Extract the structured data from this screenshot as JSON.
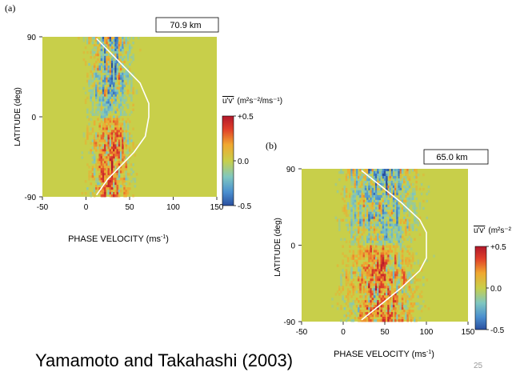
{
  "chart_data": [
    {
      "type": "heatmap",
      "panel_label": "(a)",
      "title": "70.9 km",
      "xlabel": "PHASE VELOCITY (ms",
      "xlabel_sup": "-1",
      "xlabel_close": ")",
      "ylabel": "LATITUDE (deg)",
      "x_ticks": [
        "-50",
        "0",
        "50",
        "100",
        "150"
      ],
      "x_tick_values": [
        -50,
        0,
        50,
        100,
        150
      ],
      "y_ticks": [
        "90",
        "0",
        "-90"
      ],
      "y_tick_values": [
        90,
        0,
        -90
      ],
      "xlim": [
        -50,
        150
      ],
      "ylim": [
        -90,
        90
      ],
      "colorbar_ticks": [
        "+0.5",
        "0.0",
        "-0.5"
      ],
      "colorbar_range": [
        -0.5,
        0.5
      ],
      "quantity": "u'v'",
      "units": "(m²s⁻²/ms⁻¹)",
      "envelope_line": [
        [
          12,
          88
        ],
        [
          30,
          70
        ],
        [
          45,
          55
        ],
        [
          62,
          38
        ],
        [
          72,
          15
        ],
        [
          72,
          0
        ],
        [
          68,
          -22
        ],
        [
          55,
          -40
        ],
        [
          40,
          -55
        ],
        [
          25,
          -70
        ],
        [
          12,
          -88
        ]
      ],
      "signal_center": [
        25,
        30
      ],
      "signal_halfwidth": [
        28,
        26
      ]
    },
    {
      "type": "heatmap",
      "panel_label": "(b)",
      "title": "65.0 km",
      "xlabel": "PHASE VELOCITY (ms",
      "xlabel_sup": "-1",
      "xlabel_close": ")",
      "ylabel": "LATITUDE (deg)",
      "x_ticks": [
        "-50",
        "0",
        "50",
        "100",
        "150"
      ],
      "x_tick_values": [
        -50,
        0,
        50,
        100,
        150
      ],
      "y_ticks": [
        "90",
        "0",
        "-90"
      ],
      "y_tick_values": [
        90,
        0,
        -90
      ],
      "xlim": [
        -50,
        150
      ],
      "ylim": [
        -90,
        90
      ],
      "colorbar_ticks": [
        "+0.5",
        "0.0",
        "-0.5"
      ],
      "colorbar_range": [
        -0.5,
        0.5
      ],
      "quantity": "u'v'",
      "units": "(m²s⁻²",
      "envelope_line": [
        [
          22,
          88
        ],
        [
          45,
          70
        ],
        [
          70,
          50
        ],
        [
          92,
          30
        ],
        [
          100,
          15
        ],
        [
          100,
          -15
        ],
        [
          92,
          -30
        ],
        [
          70,
          -50
        ],
        [
          45,
          -70
        ],
        [
          22,
          -88
        ]
      ],
      "signal_center": [
        30,
        60
      ],
      "signal_halfwidth": [
        32,
        50
      ]
    }
  ],
  "credit": "Yamamoto and Takahashi (2003)",
  "page_number": "25"
}
